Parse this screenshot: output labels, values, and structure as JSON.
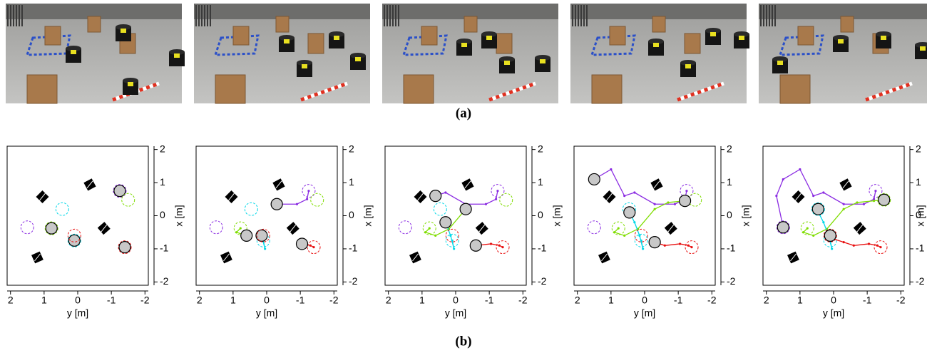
{
  "figure": {
    "label_a": "(a)",
    "label_b": "(b)"
  },
  "chart_data": [
    {
      "type": "trajectory",
      "xlabel": "y [m]",
      "ylabel": "x [m]",
      "xlim": [
        2.1,
        -2.1
      ],
      "ylim": [
        -2.1,
        2.1
      ],
      "xticks": [
        2,
        1,
        0,
        -1,
        -2
      ],
      "yticks": [
        -2,
        -1,
        0,
        1,
        2
      ],
      "obstacles": {
        "x": [
          1.05,
          -0.36,
          -0.78,
          1.2
        ],
        "y": [
          0.57,
          0.94,
          -0.38,
          -1.26
        ]
      },
      "series": [
        {
          "color": "#8a2be2",
          "x": [
            -1.25
          ],
          "y": [
            0.75
          ],
          "goal": [
            1.5,
            -0.35
          ]
        },
        {
          "color": "#7fdd00",
          "x": [
            0.78
          ],
          "y": [
            -0.38
          ],
          "goal": [
            -1.5,
            0.48
          ]
        },
        {
          "color": "#00d8e8",
          "x": [
            0.1
          ],
          "y": [
            -0.75
          ],
          "goal": [
            0.46,
            0.2
          ]
        },
        {
          "color": "#e81010",
          "x": [
            -1.4
          ],
          "y": [
            -0.95
          ],
          "goal": [
            0.1,
            -0.6
          ]
        }
      ]
    },
    {
      "type": "trajectory",
      "xlabel": "y [m]",
      "ylabel": "x [m]",
      "xlim": [
        2.1,
        -2.1
      ],
      "ylim": [
        -2.1,
        2.1
      ],
      "xticks": [
        2,
        1,
        0,
        -1,
        -2
      ],
      "yticks": [
        -2,
        -1,
        0,
        1,
        2
      ],
      "obstacles": {
        "x": [
          1.05,
          -0.36,
          -0.78,
          1.2
        ],
        "y": [
          0.57,
          0.94,
          -0.38,
          -1.26
        ]
      },
      "series": [
        {
          "color": "#8a2be2",
          "x": [
            -1.25,
            -1.2,
            -0.9,
            -0.3
          ],
          "y": [
            0.75,
            0.5,
            0.35,
            0.35
          ],
          "goal": [
            1.5,
            -0.35
          ]
        },
        {
          "color": "#7fdd00",
          "x": [
            0.78,
            0.9,
            0.6
          ],
          "y": [
            -0.38,
            -0.5,
            -0.6
          ],
          "goal": [
            -1.5,
            0.48
          ]
        },
        {
          "color": "#00d8e8",
          "x": [
            0.1,
            0.05,
            0.15
          ],
          "y": [
            -0.75,
            -1.0,
            -0.6
          ],
          "goal": [
            0.46,
            0.2
          ]
        },
        {
          "color": "#e81010",
          "x": [
            -1.4,
            -1.3,
            -1.05
          ],
          "y": [
            -0.95,
            -0.9,
            -0.85
          ],
          "goal": [
            0.1,
            -0.6
          ]
        }
      ]
    },
    {
      "type": "trajectory",
      "xlabel": "y [m]",
      "ylabel": "x [m]",
      "xlim": [
        2.1,
        -2.1
      ],
      "ylim": [
        -2.1,
        2.1
      ],
      "xticks": [
        2,
        1,
        0,
        -1,
        -2
      ],
      "yticks": [
        -2,
        -1,
        0,
        1,
        2
      ],
      "obstacles": {
        "x": [
          1.05,
          -0.36,
          -0.78,
          1.2
        ],
        "y": [
          0.57,
          0.94,
          -0.38,
          -1.26
        ]
      },
      "series": [
        {
          "color": "#8a2be2",
          "x": [
            -1.25,
            -1.2,
            -0.9,
            -0.3,
            0.3,
            0.6
          ],
          "y": [
            0.75,
            0.5,
            0.35,
            0.35,
            0.7,
            0.6
          ],
          "goal": [
            1.5,
            -0.35
          ]
        },
        {
          "color": "#7fdd00",
          "x": [
            0.78,
            0.9,
            0.6,
            0.2,
            -0.3
          ],
          "y": [
            -0.38,
            -0.5,
            -0.6,
            -0.4,
            0.2
          ],
          "goal": [
            -1.5,
            0.48
          ]
        },
        {
          "color": "#00d8e8",
          "x": [
            0.1,
            0.05,
            0.15,
            0.3
          ],
          "y": [
            -0.75,
            -1.0,
            -0.6,
            -0.2
          ],
          "goal": [
            0.46,
            0.2
          ]
        },
        {
          "color": "#e81010",
          "x": [
            -1.4,
            -1.3,
            -1.05,
            -0.6
          ],
          "y": [
            -0.95,
            -0.9,
            -0.85,
            -0.9
          ],
          "goal": [
            0.1,
            -0.6
          ]
        }
      ]
    },
    {
      "type": "trajectory",
      "xlabel": "y [m]",
      "ylabel": "x [m]",
      "xlim": [
        2.1,
        -2.1
      ],
      "ylim": [
        -2.1,
        2.1
      ],
      "xticks": [
        2,
        1,
        0,
        -1,
        -2
      ],
      "yticks": [
        -2,
        -1,
        0,
        1,
        2
      ],
      "obstacles": {
        "x": [
          1.05,
          -0.36,
          -0.78,
          1.2
        ],
        "y": [
          0.57,
          0.94,
          -0.38,
          -1.26
        ]
      },
      "series": [
        {
          "color": "#8a2be2",
          "x": [
            -1.25,
            -1.2,
            -0.9,
            -0.3,
            0.3,
            0.6,
            1.0,
            1.5
          ],
          "y": [
            0.75,
            0.5,
            0.35,
            0.35,
            0.7,
            0.6,
            1.4,
            1.1
          ],
          "goal": [
            1.5,
            -0.35
          ]
        },
        {
          "color": "#7fdd00",
          "x": [
            0.78,
            0.9,
            0.6,
            0.2,
            -0.3,
            -0.7,
            -1.2
          ],
          "y": [
            -0.38,
            -0.5,
            -0.6,
            -0.4,
            0.2,
            0.4,
            0.45
          ],
          "goal": [
            -1.5,
            0.48
          ]
        },
        {
          "color": "#00d8e8",
          "x": [
            0.1,
            0.05,
            0.15,
            0.3,
            0.45
          ],
          "y": [
            -0.75,
            -1.0,
            -0.6,
            -0.2,
            0.1
          ],
          "goal": [
            0.46,
            0.2
          ]
        },
        {
          "color": "#e81010",
          "x": [
            -1.4,
            -1.3,
            -1.05,
            -0.6,
            -0.3
          ],
          "y": [
            -0.95,
            -0.9,
            -0.85,
            -0.9,
            -0.8
          ],
          "goal": [
            0.1,
            -0.6
          ]
        }
      ]
    },
    {
      "type": "trajectory",
      "xlabel": "y [m]",
      "ylabel": "x [m]",
      "xlim": [
        2.1,
        -2.1
      ],
      "ylim": [
        -2.1,
        2.1
      ],
      "xticks": [
        2,
        1,
        0,
        -1,
        -2
      ],
      "yticks": [
        -2,
        -1,
        0,
        1,
        2
      ],
      "obstacles": {
        "x": [
          1.05,
          -0.36,
          -0.78,
          1.2
        ],
        "y": [
          0.57,
          0.94,
          -0.38,
          -1.26
        ]
      },
      "series": [
        {
          "color": "#8a2be2",
          "x": [
            -1.25,
            -1.2,
            -0.9,
            -0.3,
            0.3,
            0.6,
            1.0,
            1.5,
            1.7,
            1.5
          ],
          "y": [
            0.75,
            0.5,
            0.35,
            0.35,
            0.7,
            0.6,
            1.4,
            1.1,
            0.6,
            -0.35
          ],
          "goal": [
            1.5,
            -0.35
          ]
        },
        {
          "color": "#7fdd00",
          "x": [
            0.78,
            0.9,
            0.6,
            0.2,
            -0.3,
            -0.7,
            -1.2,
            -1.5
          ],
          "y": [
            -0.38,
            -0.5,
            -0.6,
            -0.4,
            0.2,
            0.4,
            0.45,
            0.48
          ],
          "goal": [
            -1.5,
            0.48
          ]
        },
        {
          "color": "#00d8e8",
          "x": [
            0.1,
            0.05,
            0.15,
            0.3,
            0.45,
            0.46
          ],
          "y": [
            -0.75,
            -1.0,
            -0.6,
            -0.2,
            0.1,
            0.2
          ],
          "goal": [
            0.46,
            0.2
          ]
        },
        {
          "color": "#e81010",
          "x": [
            -1.4,
            -1.3,
            -1.05,
            -0.6,
            -0.3,
            0.0,
            0.1
          ],
          "y": [
            -0.95,
            -0.9,
            -0.85,
            -0.9,
            -0.8,
            -0.7,
            -0.6
          ],
          "goal": [
            0.1,
            -0.6
          ]
        }
      ]
    }
  ]
}
